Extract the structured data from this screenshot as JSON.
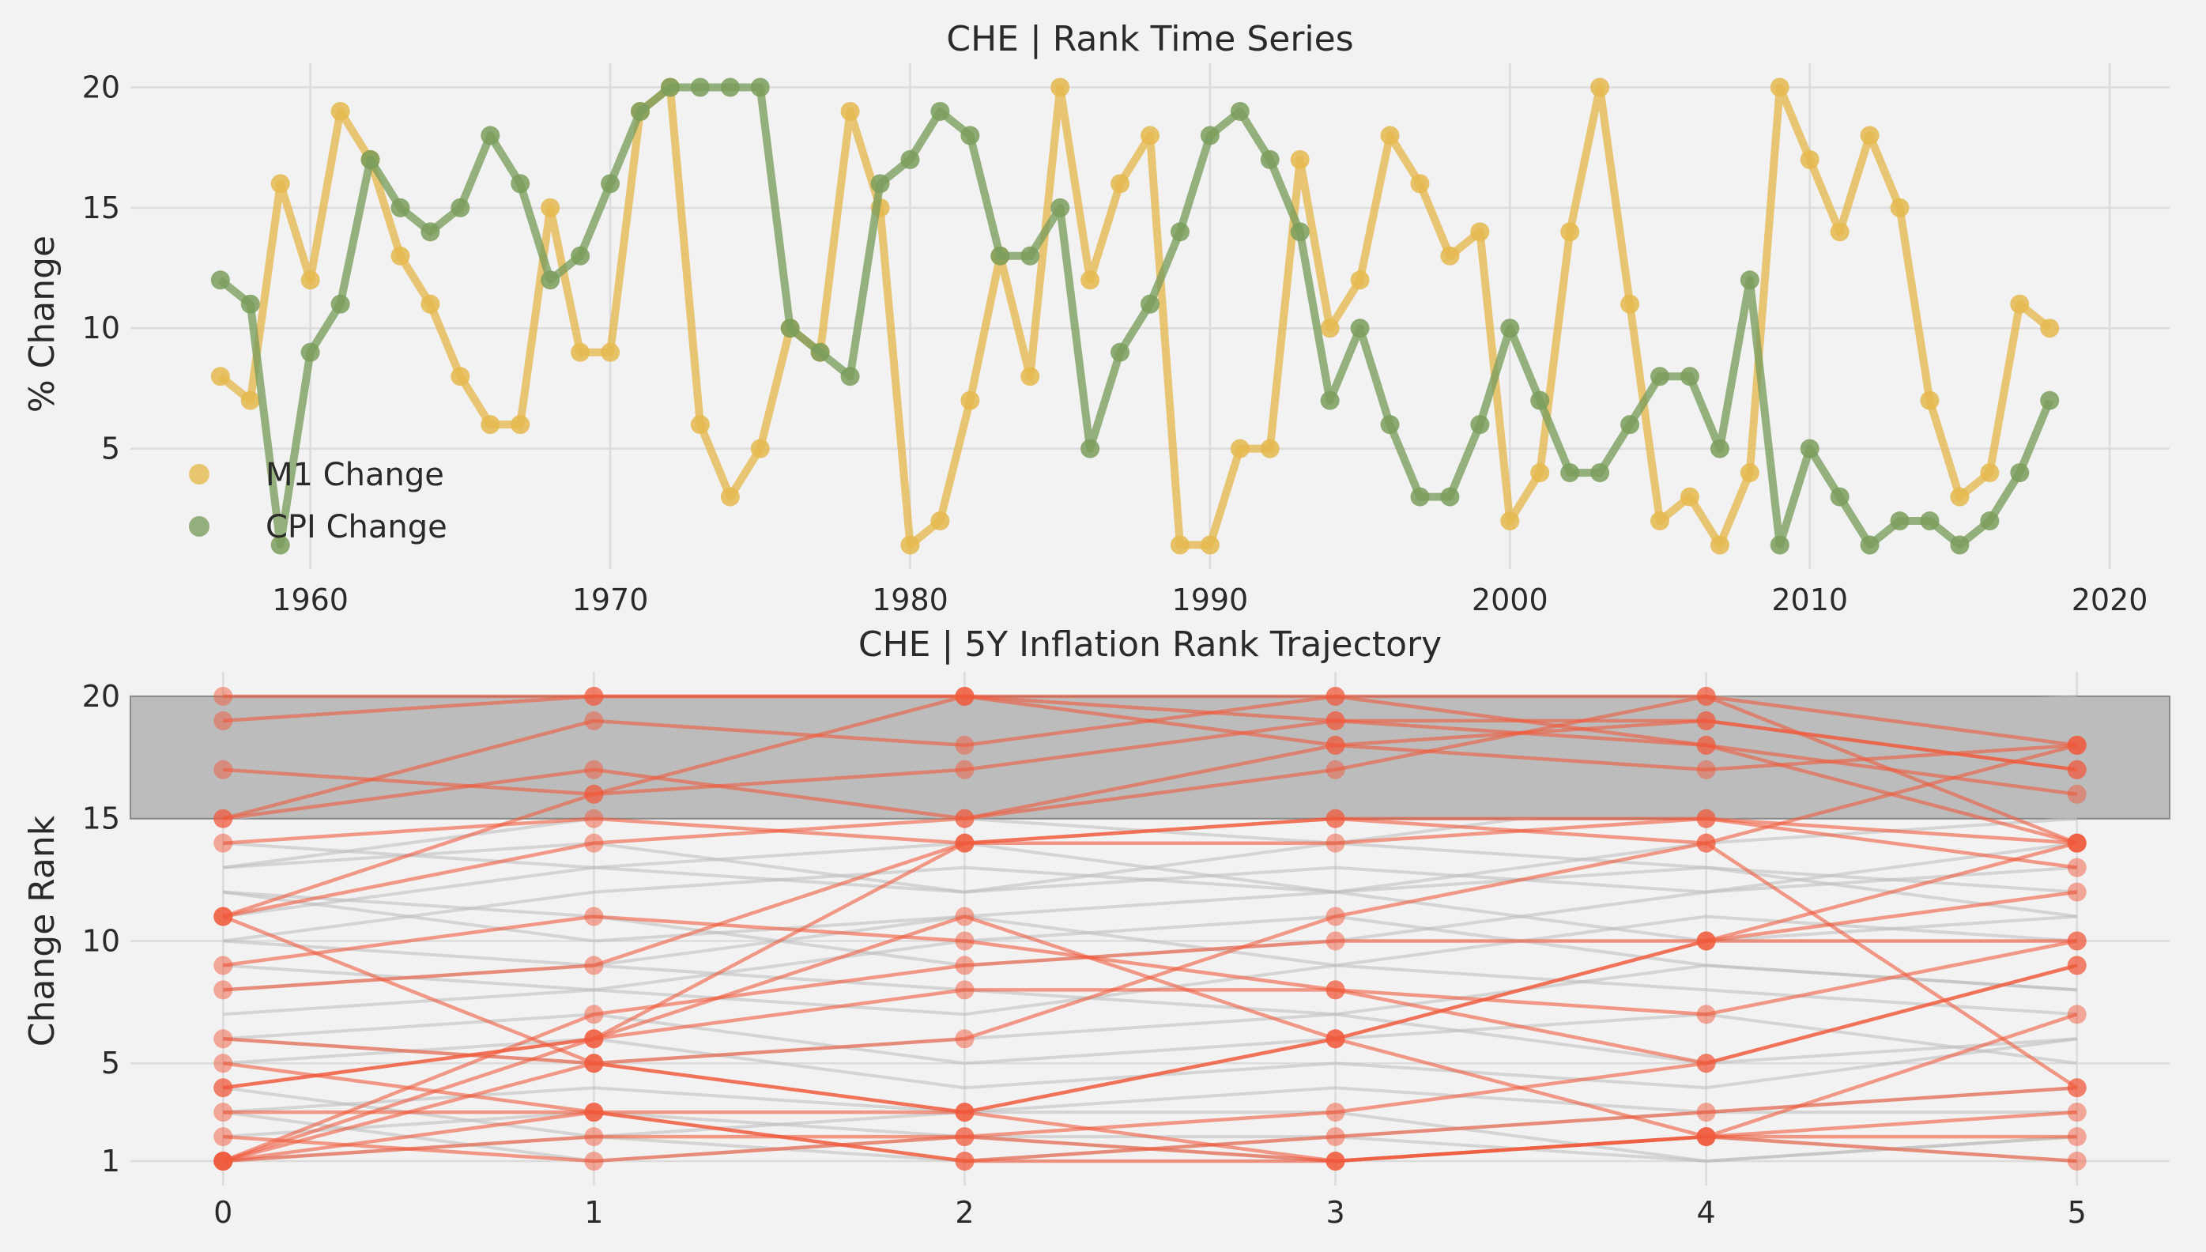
{
  "chart_data": [
    {
      "type": "line",
      "title": "CHE | Rank Time Series",
      "xlabel": "",
      "ylabel": "% Change",
      "xlim": [
        1954,
        2022
      ],
      "ylim": [
        0,
        21
      ],
      "xticks": [
        1960,
        1970,
        1980,
        1990,
        2000,
        2010,
        2020
      ],
      "yticks": [
        5,
        10,
        15,
        20
      ],
      "grid": true,
      "legend": "bottom-left",
      "x": [
        1957,
        1958,
        1959,
        1960,
        1961,
        1962,
        1963,
        1964,
        1965,
        1966,
        1967,
        1968,
        1969,
        1970,
        1971,
        1972,
        1973,
        1974,
        1975,
        1976,
        1977,
        1978,
        1979,
        1980,
        1981,
        1982,
        1983,
        1984,
        1985,
        1986,
        1987,
        1988,
        1989,
        1990,
        1991,
        1992,
        1993,
        1994,
        1995,
        1996,
        1997,
        1998,
        1999,
        2000,
        2001,
        2002,
        2003,
        2004,
        2005,
        2006,
        2007,
        2008,
        2009,
        2010,
        2011,
        2012,
        2013,
        2014,
        2015,
        2016,
        2017,
        2018
      ],
      "series": [
        {
          "name": "M1 Change",
          "color": "#e5b94e",
          "values": [
            8,
            7,
            16,
            12,
            19,
            17,
            13,
            11,
            8,
            6,
            6,
            15,
            9,
            9,
            19,
            20,
            6,
            3,
            5,
            10,
            9,
            19,
            15,
            1,
            2,
            7,
            13,
            8,
            20,
            12,
            16,
            18,
            1,
            1,
            5,
            5,
            17,
            10,
            12,
            18,
            16,
            13,
            14,
            2,
            4,
            14,
            20,
            11,
            2,
            3,
            1,
            4,
            20,
            17,
            14,
            18,
            15,
            7,
            3,
            4,
            11,
            10
          ]
        },
        {
          "name": "CPI Change",
          "color": "#7a9e5c",
          "values": [
            12,
            11,
            1,
            9,
            11,
            17,
            15,
            14,
            15,
            18,
            16,
            12,
            13,
            16,
            19,
            20,
            20,
            20,
            20,
            10,
            9,
            8,
            16,
            17,
            19,
            18,
            13,
            13,
            15,
            5,
            9,
            11,
            14,
            18,
            19,
            17,
            14,
            7,
            10,
            6,
            3,
            3,
            6,
            10,
            7,
            4,
            4,
            6,
            8,
            8,
            5,
            12,
            1,
            5,
            3,
            1,
            2,
            2,
            1,
            2,
            4,
            7
          ]
        }
      ]
    },
    {
      "type": "line",
      "title": "CHE | 5Y Inflation Rank Trajectory",
      "xlabel": "",
      "ylabel": "Change Rank",
      "xlim": [
        -0.25,
        5.25
      ],
      "ylim": [
        0,
        21
      ],
      "xticks": [
        0,
        1,
        2,
        3,
        4,
        5
      ],
      "yticks": [
        1,
        5,
        10,
        15,
        20
      ],
      "highlight_band": [
        15,
        20
      ],
      "band_color": "#b8b8b8",
      "grid": true,
      "highlight_color": "#f05a3c",
      "background_color": "#bcbcbc",
      "highlighted": [
        [
          20,
          20,
          20,
          20,
          20,
          18
        ],
        [
          19,
          20,
          20,
          19,
          19,
          17
        ],
        [
          17,
          16,
          17,
          19,
          18,
          16
        ],
        [
          15,
          17,
          15,
          17,
          20,
          14
        ],
        [
          15,
          19,
          18,
          20,
          18,
          14
        ],
        [
          14,
          15,
          14,
          14,
          15,
          13
        ],
        [
          11,
          16,
          20,
          18,
          17,
          18
        ],
        [
          11,
          14,
          15,
          18,
          19,
          17
        ],
        [
          9,
          11,
          10,
          8,
          7,
          10
        ],
        [
          8,
          9,
          14,
          15,
          14,
          18
        ],
        [
          6,
          5,
          3,
          6,
          10,
          14
        ],
        [
          5,
          3,
          1,
          2,
          3,
          4
        ],
        [
          4,
          6,
          11,
          6,
          10,
          12
        ],
        [
          3,
          3,
          3,
          1,
          2,
          2
        ],
        [
          2,
          1,
          2,
          3,
          5,
          9
        ],
        [
          1,
          7,
          9,
          10,
          10,
          10
        ],
        [
          1,
          2,
          2,
          1,
          2,
          1
        ],
        [
          1,
          5,
          3,
          6,
          2,
          3
        ],
        [
          1,
          6,
          14,
          15,
          15,
          14
        ],
        [
          1,
          3,
          1,
          1,
          2,
          7
        ],
        [
          11,
          5,
          6,
          11,
          14,
          4
        ],
        [
          4,
          6,
          8,
          8,
          5,
          9
        ]
      ],
      "background": [
        [
          18,
          17,
          18,
          16,
          17,
          19
        ],
        [
          16,
          18,
          16,
          17,
          16,
          17
        ],
        [
          13,
          14,
          12,
          13,
          12,
          14
        ],
        [
          12,
          10,
          11,
          9,
          11,
          10
        ],
        [
          10,
          12,
          13,
          12,
          13,
          11
        ],
        [
          7,
          8,
          7,
          9,
          8,
          7
        ],
        [
          6,
          7,
          5,
          6,
          7,
          5
        ],
        [
          3,
          4,
          3,
          4,
          3,
          4
        ],
        [
          2,
          3,
          2,
          2,
          3,
          3
        ],
        [
          9,
          8,
          10,
          11,
          9,
          8
        ],
        [
          14,
          13,
          14,
          12,
          14,
          15
        ],
        [
          19,
          18,
          19,
          20,
          19,
          20
        ],
        [
          5,
          6,
          4,
          5,
          4,
          6
        ],
        [
          8,
          9,
          8,
          7,
          9,
          8
        ],
        [
          12,
          11,
          9,
          10,
          12,
          13
        ],
        [
          17,
          19,
          18,
          18,
          20,
          19
        ],
        [
          4,
          2,
          3,
          3,
          1,
          2
        ],
        [
          15,
          16,
          15,
          14,
          16,
          15
        ],
        [
          1,
          2,
          1,
          2,
          1,
          2
        ],
        [
          10,
          9,
          11,
          12,
          10,
          11
        ],
        [
          6,
          5,
          6,
          7,
          5,
          6
        ],
        [
          13,
          15,
          17,
          16,
          15,
          16
        ],
        [
          3,
          1,
          2,
          1,
          2,
          1
        ],
        [
          11,
          13,
          12,
          14,
          13,
          12
        ]
      ]
    }
  ]
}
